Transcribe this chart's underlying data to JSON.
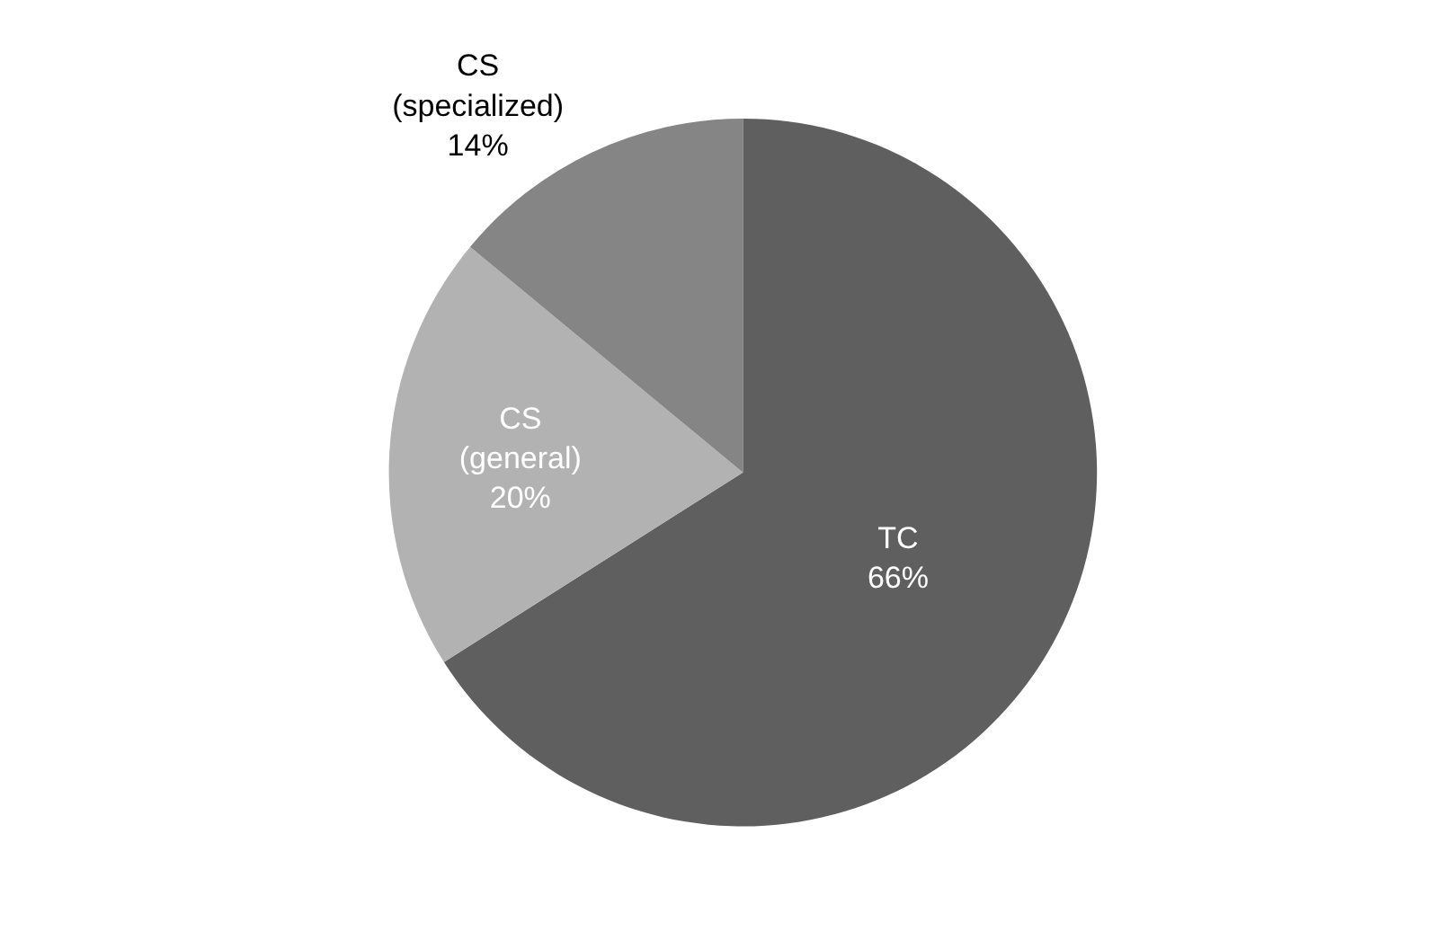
{
  "chart_data": {
    "type": "pie",
    "categories": [
      "TC",
      "CS (general)",
      "CS (specialized)"
    ],
    "values": [
      66,
      20,
      14
    ],
    "value_labels": [
      "66%",
      "20%",
      "14%"
    ],
    "colors": [
      "#5f5f5f",
      "#b2b2b2",
      "#858585"
    ],
    "legend": false
  }
}
